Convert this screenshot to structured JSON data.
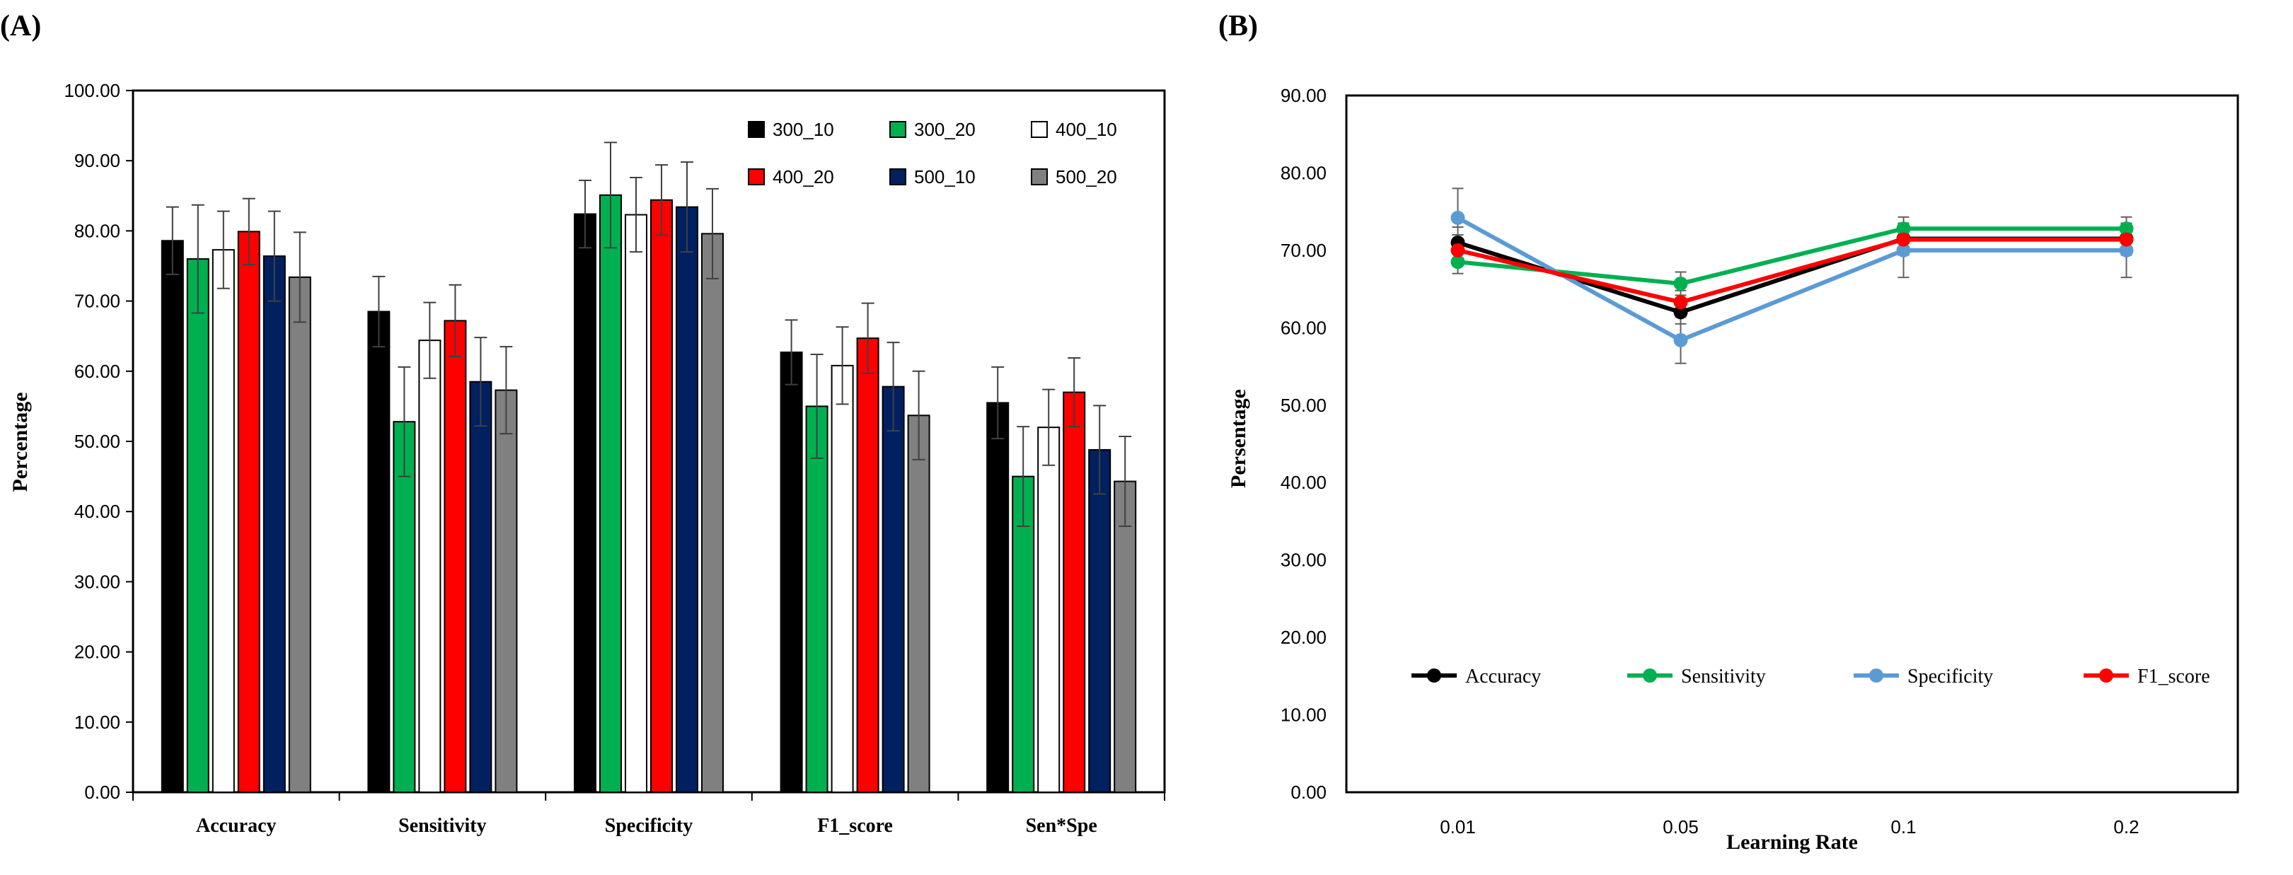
{
  "panels": {
    "a": {
      "label": "(A)"
    },
    "b": {
      "label": "(B)"
    }
  },
  "chart_data": [
    {
      "type": "bar",
      "title": "",
      "xlabel": "",
      "ylabel": "Percentage",
      "ylim": [
        0,
        100
      ],
      "yticks": [
        "0.00",
        "10.00",
        "20.00",
        "30.00",
        "40.00",
        "50.00",
        "60.00",
        "70.00",
        "80.00",
        "90.00",
        "100.00"
      ],
      "categories": [
        "Accuracy",
        "Sensitivity",
        "Specificity",
        "F1_score",
        "Sen*Spe"
      ],
      "legend_position": "top-right",
      "grid": false,
      "series": [
        {
          "name": "300_10",
          "color": "#000000",
          "values": [
            78.6,
            68.5,
            82.4,
            62.7,
            55.5
          ],
          "errors": [
            4.8,
            5.0,
            4.8,
            4.6,
            5.1
          ]
        },
        {
          "name": "300_20",
          "color": "#00b050",
          "values": [
            76.0,
            52.8,
            85.1,
            55.0,
            45.0
          ],
          "errors": [
            7.7,
            7.8,
            7.5,
            7.4,
            7.1
          ]
        },
        {
          "name": "400_10",
          "color": "#ffffff",
          "values": [
            77.3,
            64.4,
            82.3,
            60.8,
            52.0
          ],
          "errors": [
            5.5,
            5.4,
            5.3,
            5.5,
            5.4
          ]
        },
        {
          "name": "400_20",
          "color": "#ff0000",
          "values": [
            79.9,
            67.2,
            84.4,
            64.7,
            57.0
          ],
          "errors": [
            4.7,
            5.1,
            5.0,
            5.0,
            4.9
          ]
        },
        {
          "name": "500_10",
          "color": "#002060",
          "values": [
            76.4,
            58.5,
            83.4,
            57.8,
            48.8
          ],
          "errors": [
            6.4,
            6.3,
            6.4,
            6.3,
            6.3
          ]
        },
        {
          "name": "500_20",
          "color": "#808080",
          "values": [
            73.4,
            57.3,
            79.6,
            53.7,
            44.3
          ],
          "errors": [
            6.4,
            6.2,
            6.4,
            6.3,
            6.4
          ]
        }
      ]
    },
    {
      "type": "line",
      "title": "",
      "xlabel": "Learning Rate",
      "ylabel": "Persentage",
      "ylim": [
        0,
        90
      ],
      "yticks": [
        "0.00",
        "10.00",
        "20.00",
        "30.00",
        "40.00",
        "50.00",
        "60.00",
        "70.00",
        "80.00",
        "90.00"
      ],
      "categories": [
        "0.01",
        "0.05",
        "0.1",
        "0.2"
      ],
      "legend_position": "bottom",
      "grid": false,
      "series": [
        {
          "name": "Accuracy",
          "color": "#000000",
          "values": [
            71.0,
            62.0,
            71.5,
            71.5
          ],
          "errors": [
            2.0,
            1.5,
            2.0,
            2.0
          ]
        },
        {
          "name": "Sensitivity",
          "color": "#00b050",
          "values": [
            68.5,
            65.7,
            72.8,
            72.8
          ],
          "errors": [
            1.5,
            1.5,
            1.5,
            1.5
          ]
        },
        {
          "name": "Specificity",
          "color": "#5b9bd5",
          "values": [
            74.2,
            58.4,
            70.0,
            70.0
          ],
          "errors": [
            3.8,
            3.0,
            3.5,
            3.5
          ]
        },
        {
          "name": "F1_score",
          "color": "#ff0000",
          "values": [
            70.0,
            63.3,
            71.4,
            71.4
          ],
          "errors": [
            2.0,
            1.5,
            2.0,
            2.0
          ]
        }
      ]
    }
  ]
}
